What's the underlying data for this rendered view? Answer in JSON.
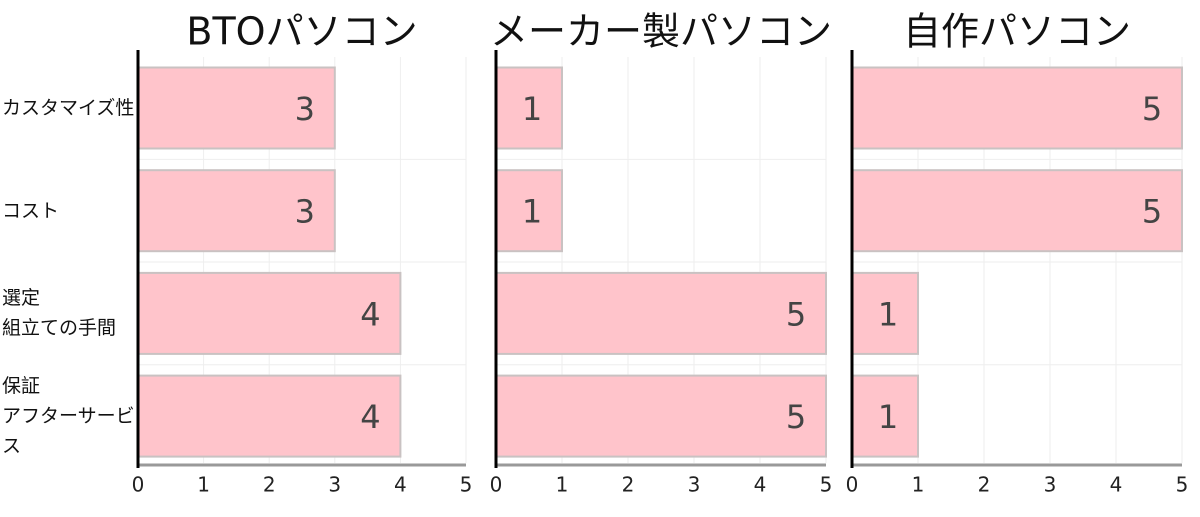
{
  "chart_data": [
    {
      "type": "bar",
      "title": "BTOパソコン",
      "categories": [
        "カスタマイズ性",
        "コスト",
        "選定\n組立ての手間",
        "保証\nアフターサービス"
      ],
      "values": [
        3,
        3,
        4,
        4
      ],
      "color": "#ffc4cb",
      "xlim": [
        0,
        5
      ],
      "xticks": [
        0,
        1,
        2,
        3,
        4,
        5
      ],
      "grid": true
    },
    {
      "type": "bar",
      "title": "メーカー製パソコン",
      "values": [
        1,
        1,
        5,
        5
      ],
      "color": "#ffc4cb",
      "xlim": [
        0,
        5
      ],
      "xticks": [
        0,
        1,
        2,
        3,
        4,
        5
      ],
      "grid": true
    },
    {
      "type": "bar",
      "title": "自作パソコン",
      "values": [
        5,
        5,
        1,
        1
      ],
      "color": "#ffc4cb",
      "xlim": [
        0,
        5
      ],
      "xticks": [
        0,
        1,
        2,
        3,
        4,
        5
      ],
      "grid": true
    }
  ]
}
